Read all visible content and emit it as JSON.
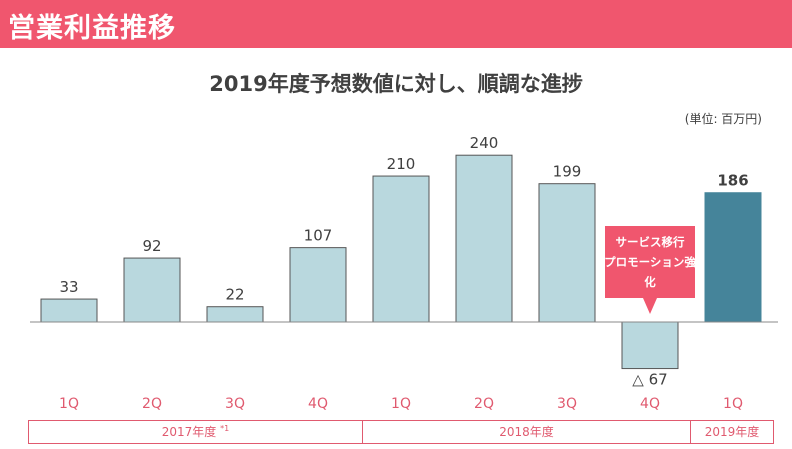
{
  "header": {
    "title": "営業利益推移"
  },
  "chart_data": {
    "type": "bar",
    "title": "2019年度予想数値に対し、順調な進捗",
    "unit_label": "(単位: 百万円)",
    "categories": [
      "1Q",
      "2Q",
      "3Q",
      "4Q",
      "1Q",
      "2Q",
      "3Q",
      "4Q",
      "1Q"
    ],
    "values": [
      33,
      92,
      22,
      107,
      210,
      240,
      199,
      -67,
      186
    ],
    "value_labels": [
      "33",
      "92",
      "22",
      "107",
      "210",
      "240",
      "199",
      "△ 67",
      "186"
    ],
    "fiscal_years": [
      {
        "label": "2017年度",
        "note": "*1"
      },
      {
        "label": "2018年度",
        "note": ""
      },
      {
        "label": "2019年度",
        "note": ""
      }
    ],
    "callout": "サービス移行プロモーション強化",
    "colors": {
      "bar": "#b9d8de",
      "bar_highlight": "#45849a",
      "bar_border": "#555555",
      "axis_label": "#e05a6f",
      "callout": "#f0566e"
    }
  }
}
